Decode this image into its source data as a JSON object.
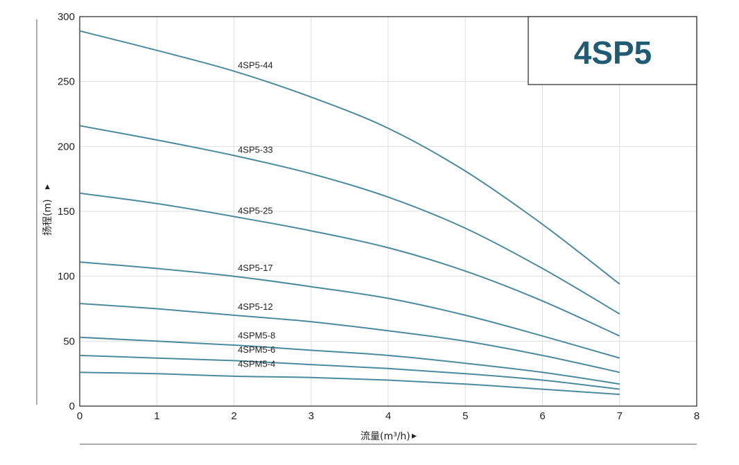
{
  "chart_data": {
    "type": "line",
    "title": "4SP5",
    "xlabel": "流量(m³/h)",
    "ylabel": "扬程(m)",
    "xlim": [
      0,
      8
    ],
    "ylim": [
      0,
      300
    ],
    "x_ticks": [
      "0",
      "1",
      "2",
      "3",
      "4",
      "5",
      "6",
      "7",
      "8"
    ],
    "y_ticks": [
      "0",
      "50",
      "100",
      "150",
      "200",
      "250",
      "300"
    ],
    "grid": true,
    "curve_color": "#4a8a9c",
    "title_color": "#1f5c73",
    "series": [
      {
        "name": "4SP5-44",
        "x": [
          0,
          1,
          2,
          3,
          4,
          5,
          6,
          7
        ],
        "values": [
          289,
          274,
          258,
          238,
          214,
          181,
          140,
          94
        ]
      },
      {
        "name": "4SP5-33",
        "x": [
          0,
          1,
          2,
          3,
          4,
          5,
          6,
          7
        ],
        "values": [
          216,
          205,
          193,
          179,
          161,
          137,
          106,
          71
        ]
      },
      {
        "name": "4SP5-25",
        "x": [
          0,
          1,
          2,
          3,
          4,
          5,
          6,
          7
        ],
        "values": [
          164,
          156,
          146,
          135,
          122,
          104,
          81,
          54
        ]
      },
      {
        "name": "4SP5-17",
        "x": [
          0,
          1,
          2,
          3,
          4,
          5,
          6,
          7
        ],
        "values": [
          111,
          106,
          100,
          92,
          83,
          70,
          54,
          37
        ]
      },
      {
        "name": "4SP5-12",
        "x": [
          0,
          1,
          2,
          3,
          4,
          5,
          6,
          7
        ],
        "values": [
          79,
          75,
          70,
          65,
          58,
          50,
          39,
          26
        ]
      },
      {
        "name": "4SPM5-8",
        "x": [
          0,
          1,
          2,
          3,
          4,
          5,
          6,
          7
        ],
        "values": [
          53,
          50,
          47,
          43,
          39,
          33,
          26,
          17
        ]
      },
      {
        "name": "4SPM5-6",
        "x": [
          0,
          1,
          2,
          3,
          4,
          5,
          6,
          7
        ],
        "values": [
          39,
          37,
          35,
          32,
          29,
          25,
          20,
          13
        ]
      },
      {
        "name": "4SPM5-4",
        "x": [
          0,
          1,
          2,
          3,
          4,
          5,
          6,
          7
        ],
        "values": [
          26,
          25,
          23,
          22,
          20,
          17,
          13,
          9
        ]
      }
    ],
    "labels": [
      {
        "text": "4SP5-44",
        "x": 2.05,
        "y": 258
      },
      {
        "text": "4SP5-33",
        "x": 2.05,
        "y": 193
      },
      {
        "text": "4SP5-25",
        "x": 2.05,
        "y": 146
      },
      {
        "text": "4SP5-17",
        "x": 2.05,
        "y": 102
      },
      {
        "text": "4SP5-12",
        "x": 2.05,
        "y": 72
      },
      {
        "text": "4SPM5-8",
        "x": 2.05,
        "y": 50
      },
      {
        "text": "4SPM5-6",
        "x": 2.05,
        "y": 39
      },
      {
        "text": "4SPM5-4",
        "x": 2.05,
        "y": 28
      }
    ]
  }
}
